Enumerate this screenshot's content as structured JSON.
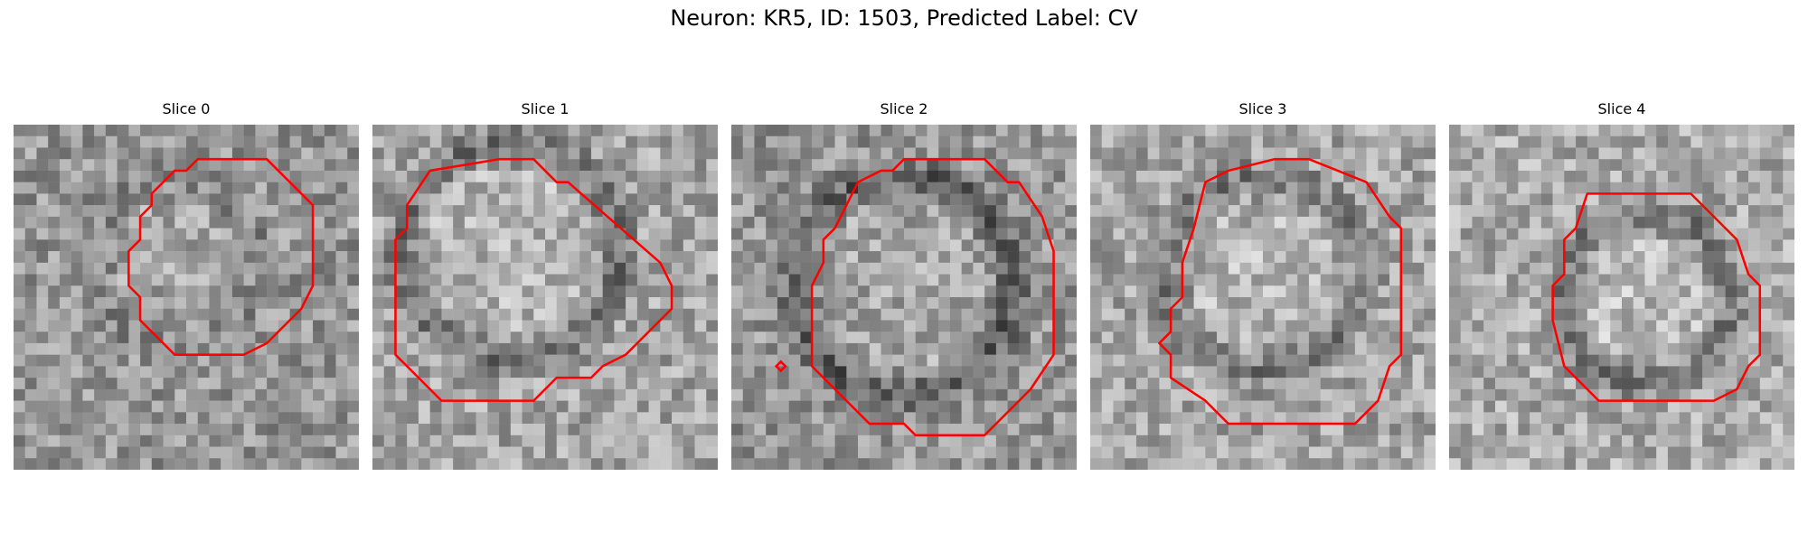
{
  "title": "Neuron: KR5, ID: 1503, Predicted Label: CV",
  "contour_color": "#ff0000",
  "slices": [
    {
      "label": "Slice 0"
    },
    {
      "label": "Slice 1"
    },
    {
      "label": "Slice 2"
    },
    {
      "label": "Slice 3"
    },
    {
      "label": "Slice 4"
    }
  ]
}
